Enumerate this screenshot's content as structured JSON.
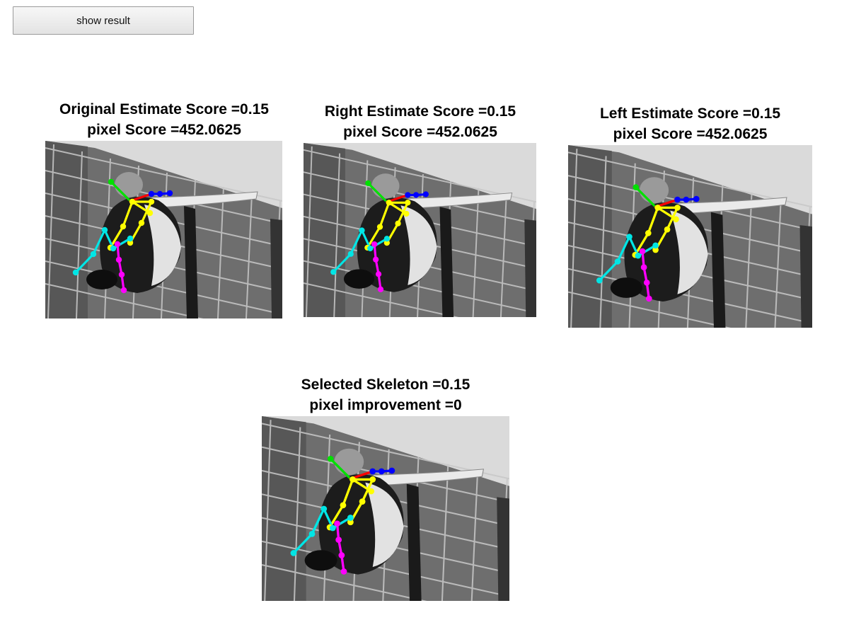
{
  "toolbar": {
    "show_result_label": "show result"
  },
  "panels": [
    {
      "title_line1": "Original Estimate Score =0.15",
      "title_line2": "pixel Score =452.0625"
    },
    {
      "title_line1": "Right Estimate Score =0.15",
      "title_line2": "pixel Score =452.0625"
    },
    {
      "title_line1": "Left Estimate Score =0.15",
      "title_line2": "pixel Score =452.0625"
    },
    {
      "title_line1": "Selected Skeleton =0.15",
      "title_line2": "pixel improvement =0"
    }
  ],
  "colors": {
    "head": "#00e000",
    "shoulders": "#0000ff",
    "torso": "#ffff00",
    "left_leg": "#ff00ff",
    "right_leg": "#00e5e5",
    "neck_link": "#ff0000"
  }
}
